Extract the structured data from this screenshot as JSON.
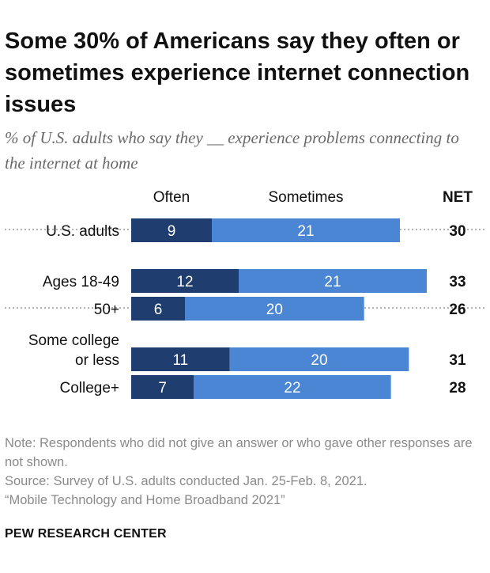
{
  "title": "Some 30% of Americans say they often or sometimes experience internet connection issues",
  "subtitle": "% of U.S. adults who say they __ experience problems connecting to the internet at home",
  "notes": {
    "note": "Note: Respondents who did not give an answer or who gave other responses are not shown.",
    "source": "Source: Survey of U.S. adults conducted Jan. 25-Feb. 8, 2021.",
    "report": "“Mobile Technology and Home Broadband 2021”"
  },
  "brand": "PEW RESEARCH CENTER",
  "chart_data": {
    "type": "bar",
    "orientation": "horizontal",
    "stacked": true,
    "net_header": "NET",
    "categories": [
      [
        "U.S. adults"
      ],
      [
        "Ages 18-49"
      ],
      [
        "50+"
      ],
      [
        "Some college",
        "or less"
      ],
      [
        "College+"
      ]
    ],
    "groups": [
      [
        0
      ],
      [
        1,
        2
      ],
      [
        3,
        4
      ]
    ],
    "series": [
      {
        "name": "Often",
        "values": [
          9,
          12,
          6,
          11,
          7
        ],
        "color": "#1f3d6e"
      },
      {
        "name": "Sometimes",
        "values": [
          21,
          21,
          20,
          20,
          22
        ],
        "color": "#4a86d4"
      }
    ],
    "net": [
      30,
      33,
      26,
      31,
      28
    ],
    "xlim": [
      0,
      33
    ],
    "value_label_color": "#ffffff",
    "separator_color": "#9a9a9a"
  }
}
